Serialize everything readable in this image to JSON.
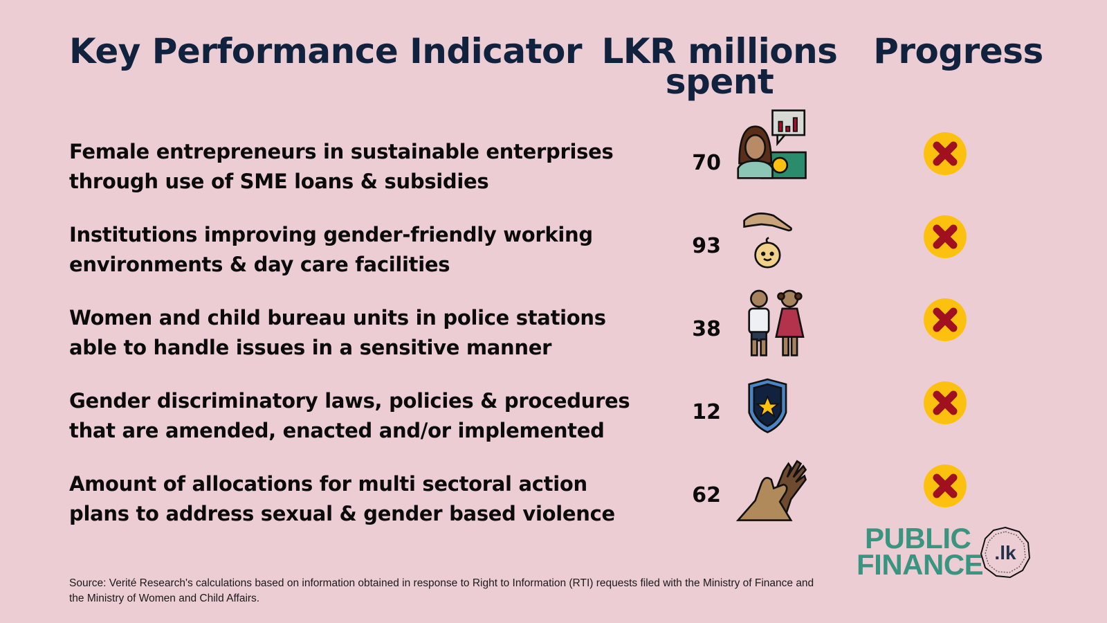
{
  "headers": {
    "kpi": "Key Performance Indicator",
    "spent": "LKR millions spent",
    "progress": "Progress"
  },
  "rows": [
    {
      "kpi_line1": "Female entrepreneurs in sustainable enterprises",
      "kpi_line2": "through use of SME loans & subsidies",
      "value": "70",
      "icon": "businesswoman-money-icon",
      "progress": "not-achieved"
    },
    {
      "kpi_line1": "Institutions improving gender-friendly working",
      "kpi_line2": "environments & day care facilities",
      "value": "93",
      "icon": "hand-protecting-baby-icon",
      "progress": "not-achieved"
    },
    {
      "kpi_line1": "Women and child bureau units in police stations",
      "kpi_line2": "able to handle issues in a sensitive manner",
      "value": "38",
      "icon": "boy-girl-children-icon",
      "progress": "not-achieved"
    },
    {
      "kpi_line1": "Gender discriminatory laws, policies & procedures",
      "kpi_line2": "that are amended, enacted and/or implemented",
      "value": "12",
      "icon": "police-badge-icon",
      "progress": "not-achieved"
    },
    {
      "kpi_line1": "Amount of allocations for multi sectoral action",
      "kpi_line2": "plans to address sexual & gender based violence",
      "value": "62",
      "icon": "helping-hands-icon",
      "progress": "not-achieved"
    }
  ],
  "colors": {
    "background": "#ebcdd3",
    "heading": "#10223d",
    "x_circle": "#fcc10f",
    "x_mark": "#a0101e",
    "logo": "#3a9580"
  },
  "source": "Source: Verité Research's calculations based on information obtained in response to Right to Information (RTI) requests filed with the Ministry of Finance and the Ministry of Women and Child Affairs.",
  "logo": {
    "line1": "PUBLIC",
    "line2": "FINANCE",
    "badge": ".lk"
  }
}
